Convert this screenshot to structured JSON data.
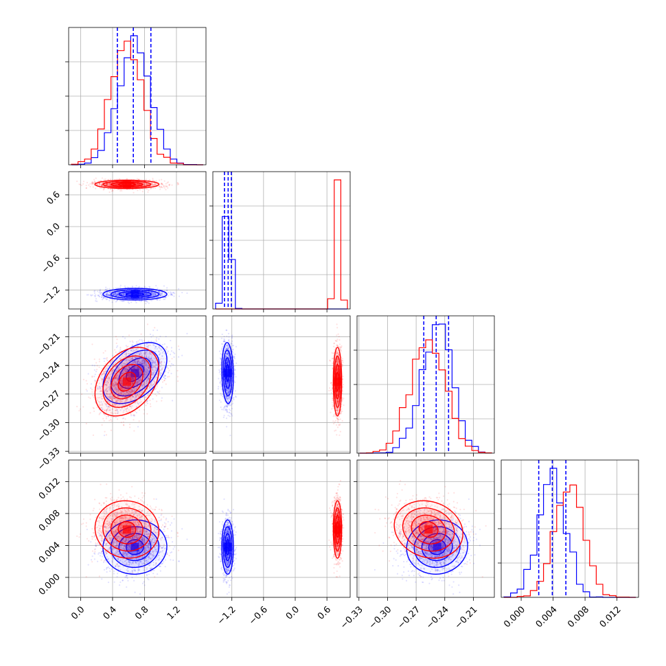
{
  "chart_data": {
    "type": "corner",
    "grid": true,
    "series": [
      {
        "color": "#0000ff",
        "a": {
          "mean": 0.68,
          "sd": 0.2
        },
        "b": {
          "mean": -1.28,
          "sd": 0.055
        },
        "c": {
          "mean": -0.248,
          "sd": 0.016
        },
        "d": {
          "mean": 0.0038,
          "sd": 0.0017
        },
        "corr_ac": 0.45,
        "corr_bc": -0.1,
        "corr_cd": 0.05,
        "quantiles": {
          "a": [
            0.46,
            0.66,
            0.88
          ],
          "b": [
            -1.34,
            -1.27,
            -1.21
          ],
          "c": [
            -0.262,
            -0.249,
            -0.236
          ],
          "d": [
            0.0022,
            0.0039,
            0.0056
          ]
        }
      },
      {
        "color": "#ff0000",
        "a": {
          "mean": 0.58,
          "sd": 0.2
        },
        "b": {
          "mean": 0.8,
          "sd": 0.04
        },
        "c": {
          "mean": -0.257,
          "sd": 0.018
        },
        "d": {
          "mean": 0.006,
          "sd": 0.0018
        },
        "corr_ac": 0.35,
        "corr_bc": 0.0,
        "corr_cd": -0.15
      }
    ],
    "axes": {
      "a": {
        "range": [
          -0.15,
          1.57
        ],
        "ticks": [
          0.0,
          0.4,
          0.8,
          1.2
        ],
        "tick_labels": [
          "0.0",
          "0.4",
          "0.8",
          "1.2"
        ]
      },
      "b": {
        "range": [
          -1.56,
          1.04
        ],
        "ticks": [
          -1.2,
          -0.6,
          0.0,
          0.6
        ],
        "tick_labels": [
          "−1.2",
          "−0.6",
          "0.0",
          "0.6"
        ]
      },
      "c": {
        "range": [
          -0.332,
          -0.188
        ],
        "ticks": [
          -0.33,
          -0.3,
          -0.27,
          -0.24,
          -0.21
        ],
        "tick_labels": [
          "−0.33",
          "−0.30",
          "−0.27",
          "−0.24",
          "−0.21"
        ]
      },
      "d": {
        "range": [
          -0.0025,
          0.0147
        ],
        "ticks": [
          0.0,
          0.004,
          0.008,
          0.012
        ],
        "tick_labels": [
          "0.000",
          "0.004",
          "0.008",
          "0.012"
        ]
      }
    }
  }
}
